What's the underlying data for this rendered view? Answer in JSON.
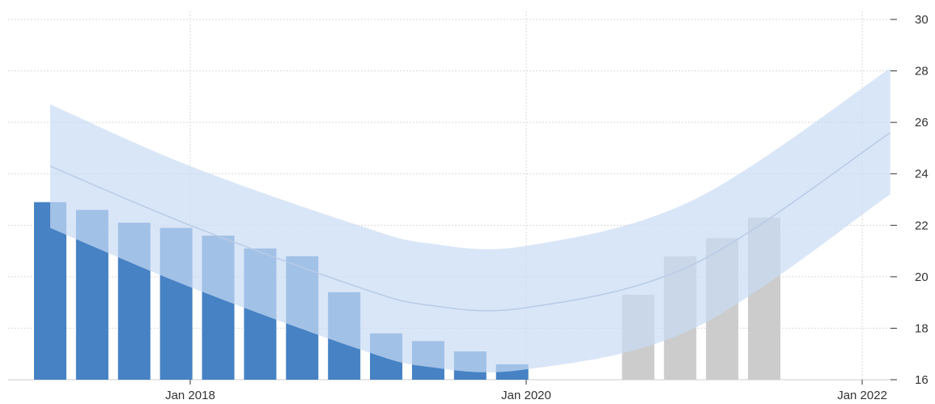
{
  "chart_data": {
    "type": "bar",
    "x_ticks": [
      "Jan 2018",
      "Jan 2020",
      "Jan 2022"
    ],
    "y_ticks": [
      16,
      18,
      20,
      22,
      24,
      26,
      28,
      30
    ],
    "ylim": [
      16,
      30
    ],
    "grid": true,
    "y_axis_side": "right",
    "series": [
      {
        "kind": "actual",
        "color": "#4682c4",
        "points": [
          {
            "x": "2017-03",
            "y": 22.9
          },
          {
            "x": "2017-06",
            "y": 22.6
          },
          {
            "x": "2017-09",
            "y": 22.1
          },
          {
            "x": "2017-12",
            "y": 21.9
          },
          {
            "x": "2018-03",
            "y": 21.6
          },
          {
            "x": "2018-06",
            "y": 21.1
          },
          {
            "x": "2018-09",
            "y": 20.8
          },
          {
            "x": "2018-12",
            "y": 19.4
          },
          {
            "x": "2019-03",
            "y": 17.8
          },
          {
            "x": "2019-06",
            "y": 17.5
          },
          {
            "x": "2019-09",
            "y": 17.1
          },
          {
            "x": "2019-12",
            "y": 16.6
          }
        ]
      },
      {
        "kind": "forecast",
        "color": "#cccccc",
        "points": [
          {
            "x": "2020-09",
            "y": 19.3
          },
          {
            "x": "2020-12",
            "y": 20.8
          },
          {
            "x": "2021-03",
            "y": 21.5
          },
          {
            "x": "2021-06",
            "y": 22.3
          }
        ]
      }
    ],
    "trend_band": {
      "fill": "#c9dcf5",
      "line_color": "#b8cbe6",
      "x": [
        "2017-03",
        "2018-01",
        "2019-01",
        "2019-06",
        "2020-01",
        "2021-01",
        "2022-03"
      ],
      "center": [
        24.3,
        22.0,
        19.6,
        18.9,
        18.8,
        20.5,
        25.6
      ],
      "upper": [
        26.7,
        24.3,
        22.0,
        21.3,
        21.2,
        23.0,
        28.1
      ],
      "lower": [
        21.9,
        19.6,
        17.2,
        16.5,
        16.4,
        18.0,
        23.2
      ]
    }
  }
}
